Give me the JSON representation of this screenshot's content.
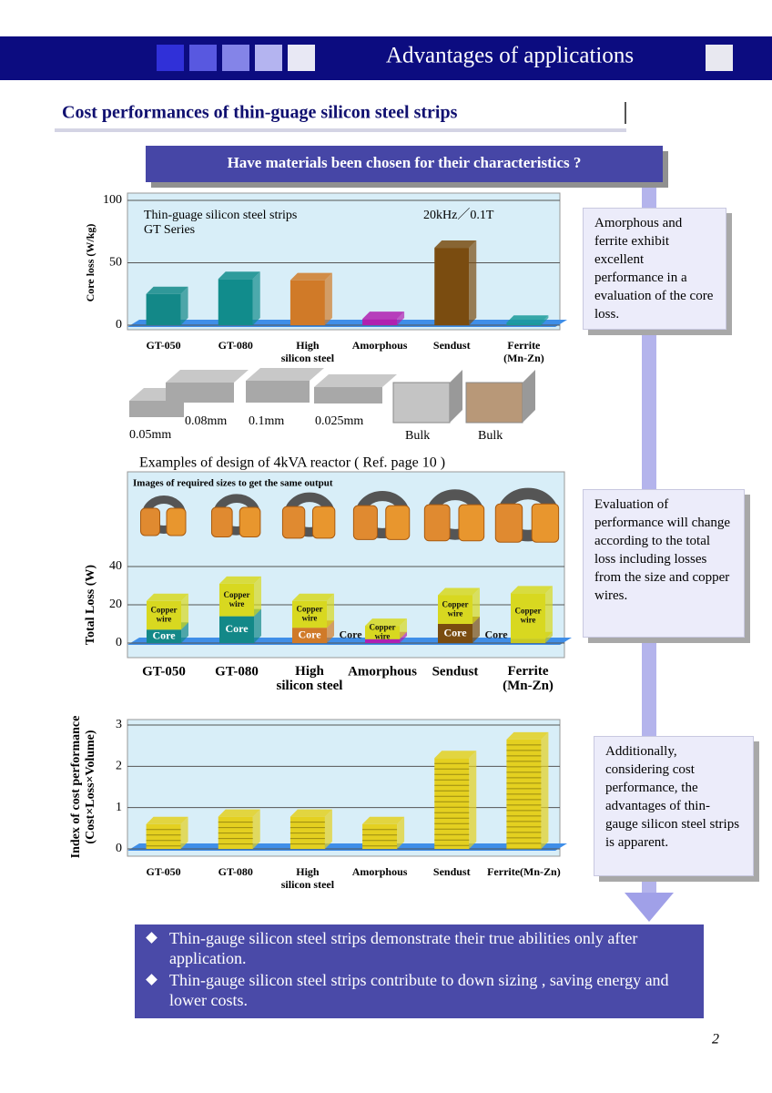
{
  "header": {
    "title": "Advantages of  applications"
  },
  "section_title": "Cost performances of thin-guage silicon steel strips",
  "question": "Have materials been chosen for their characteristics ?",
  "chart_data": [
    {
      "type": "bar",
      "title": "Thin-guage silicon steel strips",
      "subtitle": "GT Series",
      "annotation": "20kHz／0.1T",
      "y_label": [
        "Core loss (W/kg)"
      ],
      "categories": [
        "GT-050",
        "GT-080",
        "High silicon steel",
        "Amorphous",
        "Sendust",
        "Ferrite (Mn-Zn)"
      ],
      "values": [
        25,
        37,
        36,
        5,
        62,
        2
      ],
      "colors": [
        "#138888",
        "#118c8c",
        "#d07a28",
        "#b020b0",
        "#7a4c10",
        "#1a9a9a"
      ],
      "ylim": [
        0,
        100
      ],
      "yticks": [
        0,
        50,
        100
      ],
      "grid": true
    },
    {
      "type": "stacked_bar",
      "title": "Examples of design of 4kVA reactor ( Ref. page 10 )",
      "subtitle": "Images of required sizes to get the same output",
      "y_label": [
        "Total Loss (W)"
      ],
      "categories": [
        "GT-050",
        "GT-080",
        "High silicon steel",
        "Amorphous",
        "Sendust",
        "Ferrite (Mn-Zn)"
      ],
      "series": [
        {
          "name": "Core",
          "colors": [
            "#138888",
            "#138888",
            "#d07a28",
            "#b020b0",
            "#7a4c10",
            "#c8c820"
          ],
          "values": [
            7,
            14,
            8,
            2,
            10,
            2
          ]
        },
        {
          "name": "Copper wire",
          "colors": [
            "#d8d820",
            "#d8d820",
            "#d8d820",
            "#d8d820",
            "#d8d820",
            "#d8d820"
          ],
          "values": [
            15,
            17,
            14,
            7,
            15,
            24
          ]
        }
      ],
      "ylim": [
        0,
        40
      ],
      "yticks": [
        0,
        20,
        40
      ],
      "grid": true
    },
    {
      "type": "bar",
      "y_label": [
        "Index of cost performance",
        "(Cost×Loss×Volume)"
      ],
      "categories": [
        "GT-050",
        "GT-080",
        "High silicon steel",
        "Amorphous",
        "Sendust",
        "Ferrite(Mn-Zn)"
      ],
      "values": [
        0.6,
        0.78,
        0.78,
        0.6,
        2.2,
        2.65
      ],
      "color": "#e4d020",
      "ylim": [
        0,
        3
      ],
      "yticks": [
        0,
        1,
        2,
        3
      ],
      "grid": true
    }
  ],
  "samples": [
    "0.05mm",
    "0.08mm",
    "0.1mm",
    "0.025mm",
    "Bulk",
    "Bulk"
  ],
  "notes": [
    "Amorphous and ferrite exhibit excellent performance in a evaluation of the core loss.",
    "Evaluation of performance will change according to the total loss including losses from the size and  copper wires.",
    "Additionally, considering cost performance, the advantages of thin-gauge silicon steel strips is apparent."
  ],
  "conclusion": [
    "Thin-gauge silicon steel strips demonstrate their true abilities only after application.",
    "Thin-gauge silicon steel strips contribute to down sizing , saving energy and lower costs."
  ],
  "page_number": "2"
}
